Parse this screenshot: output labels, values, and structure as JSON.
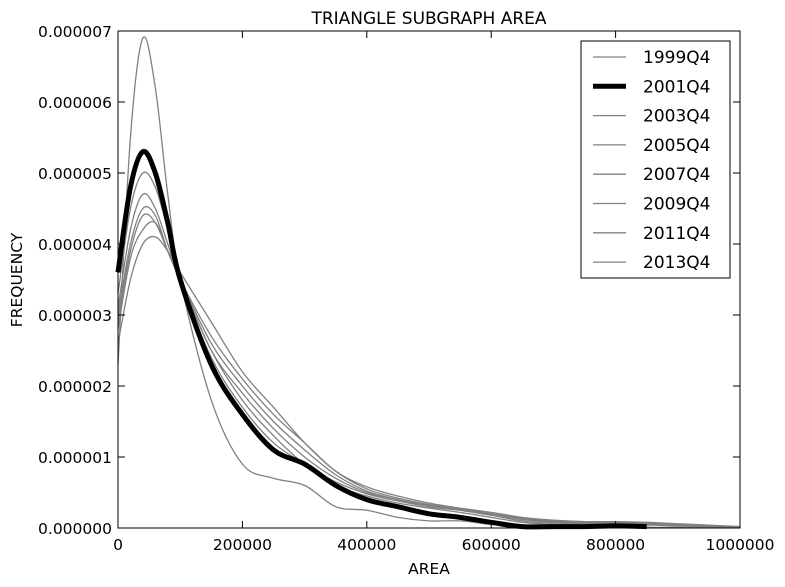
{
  "chart_data": {
    "type": "line",
    "title": "TRIANGLE SUBGRAPH AREA",
    "xlabel": "AREA",
    "ylabel": "FREQUENCY",
    "xlim": [
      0,
      1000000
    ],
    "ylim": [
      0,
      7e-06
    ],
    "x_ticks": [
      0,
      200000,
      400000,
      600000,
      800000,
      1000000
    ],
    "x_tick_labels": [
      "0",
      "200000",
      "400000",
      "600000",
      "800000",
      "1000000"
    ],
    "y_ticks": [
      0,
      1e-06,
      2e-06,
      3e-06,
      4e-06,
      5e-06,
      6e-06,
      7e-06
    ],
    "y_tick_labels": [
      "0.000000",
      "0.000001",
      "0.000002",
      "0.000003",
      "0.000004",
      "0.000005",
      "0.000006",
      "0.000007"
    ],
    "legend_position": "top-right",
    "x": [
      0,
      20000,
      40000,
      60000,
      80000,
      100000,
      150000,
      200000,
      250000,
      300000,
      350000,
      400000,
      450000,
      500000,
      550000,
      600000,
      650000,
      700000,
      750000,
      800000,
      850000,
      900000,
      950000,
      1000000
    ],
    "series": [
      {
        "name": "1999Q4",
        "color": "#808080",
        "emphasis": false,
        "values": [
          2.3e-06,
          5.5e-06,
          6.9e-06,
          6.2e-06,
          4.7e-06,
          3.5e-06,
          1.8e-06,
          9e-07,
          7e-07,
          6e-07,
          3e-07,
          2.5e-07,
          1.5e-07,
          1e-07,
          1e-07,
          5e-08,
          3e-08,
          2e-08,
          2e-08,
          2e-08,
          1e-08,
          1e-08,
          1e-08,
          5e-09
        ]
      },
      {
        "name": "2001Q4",
        "color": "#000000",
        "emphasis": true,
        "values": [
          3.6e-06,
          4.8e-06,
          5.3e-06,
          5e-06,
          4.3e-06,
          3.5e-06,
          2.3e-06,
          1.6e-06,
          1.1e-06,
          9e-07,
          6e-07,
          4e-07,
          3e-07,
          2e-07,
          1.5e-07,
          8e-08,
          2e-08,
          2e-08,
          2e-08,
          3e-08,
          2e-08,
          null,
          null,
          null
        ]
      },
      {
        "name": "2003Q4",
        "color": "#808080",
        "emphasis": false,
        "values": [
          3.3e-06,
          4.5e-06,
          5e-06,
          4.8e-06,
          4.2e-06,
          3.5e-06,
          2.4e-06,
          1.7e-06,
          1.2e-06,
          9e-07,
          6e-07,
          4.5e-07,
          3.5e-07,
          2.8e-07,
          2.2e-07,
          1.5e-07,
          8e-08,
          5e-08,
          4e-08,
          4e-08,
          4e-08,
          3e-08,
          2e-08,
          1e-08
        ]
      },
      {
        "name": "2005Q4",
        "color": "#808080",
        "emphasis": false,
        "values": [
          3.1e-06,
          4.2e-06,
          4.7e-06,
          4.5e-06,
          4e-06,
          3.5e-06,
          2.5e-06,
          1.8e-06,
          1.3e-06,
          9e-07,
          6.5e-07,
          4.8e-07,
          3.8e-07,
          3e-07,
          2.5e-07,
          1.8e-07,
          1e-07,
          7e-08,
          6e-08,
          6e-08,
          5e-08,
          4e-08,
          3e-08,
          1e-08
        ]
      },
      {
        "name": "2007Q4",
        "color": "#808080",
        "emphasis": false,
        "values": [
          3e-06,
          4e-06,
          4.5e-06,
          4.4e-06,
          3.9e-06,
          3.5e-06,
          2.5e-06,
          1.9e-06,
          1.4e-06,
          1e-06,
          7e-07,
          5e-07,
          4e-07,
          3e-07,
          2.5e-07,
          1.8e-07,
          1.2e-07,
          8e-08,
          7e-08,
          7e-08,
          6e-08,
          5e-08,
          3e-08,
          1e-08
        ]
      },
      {
        "name": "2009Q4",
        "color": "#808080",
        "emphasis": false,
        "values": [
          2.9e-06,
          3.9e-06,
          4.4e-06,
          4.3e-06,
          3.9e-06,
          3.5e-06,
          2.6e-06,
          2e-06,
          1.5e-06,
          1.1e-06,
          7.5e-07,
          5.2e-07,
          4e-07,
          3.2e-07,
          2.6e-07,
          2e-07,
          1.3e-07,
          9e-08,
          8e-08,
          8e-08,
          7e-08,
          5e-08,
          3e-08,
          1e-08
        ]
      },
      {
        "name": "2011Q4",
        "color": "#808080",
        "emphasis": false,
        "values": [
          2.8e-06,
          3.8e-06,
          4.2e-06,
          4.3e-06,
          3.9e-06,
          3.5e-06,
          2.7e-06,
          2.1e-06,
          1.6e-06,
          1.2e-06,
          8e-07,
          5.5e-07,
          4.2e-07,
          3.3e-07,
          2.7e-07,
          2e-07,
          1.4e-07,
          1e-07,
          9e-08,
          8e-08,
          7e-08,
          5e-08,
          3e-08,
          1e-08
        ]
      },
      {
        "name": "2013Q4",
        "color": "#808080",
        "emphasis": false,
        "values": [
          2.6e-06,
          3.5e-06,
          4e-06,
          4.1e-06,
          3.9e-06,
          3.6e-06,
          2.9e-06,
          2.2e-06,
          1.7e-06,
          1.2e-06,
          8e-07,
          5.8e-07,
          4.5e-07,
          3.5e-07,
          2.8e-07,
          2.2e-07,
          1.5e-07,
          1.1e-07,
          9e-08,
          9e-08,
          8e-08,
          6e-08,
          4e-08,
          2e-08
        ]
      }
    ]
  }
}
